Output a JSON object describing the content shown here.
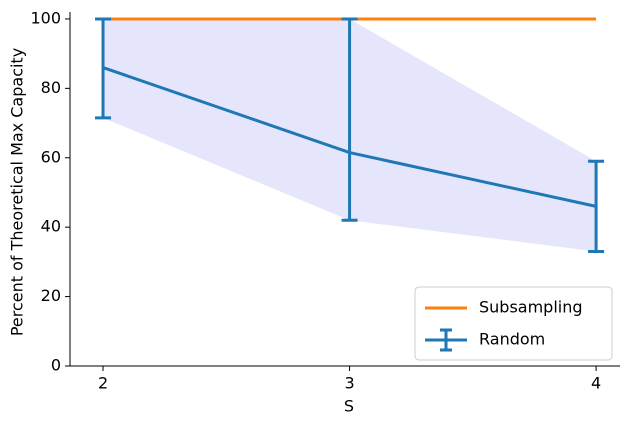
{
  "chart_data": {
    "type": "line",
    "x_label": "S",
    "y_label": "Percent of Theoretical Max Capacity",
    "x": [
      2,
      3,
      4
    ],
    "series": [
      {
        "name": "Subsampling",
        "color": "#ff7f0e",
        "values": [
          100,
          100,
          100
        ]
      },
      {
        "name": "Random",
        "color": "#1f77b4",
        "values": [
          86,
          61.5,
          46
        ],
        "error_low": [
          71.5,
          42,
          33
        ],
        "error_high": [
          100,
          100,
          59
        ],
        "band_color": "#e0e0fa"
      }
    ],
    "xlim": [
      1.866,
      4.097
    ],
    "xticks": [
      2,
      3,
      4
    ],
    "ylim": [
      0,
      102
    ],
    "yticks": [
      0,
      20,
      40,
      60,
      80,
      100
    ],
    "legend": "lower right"
  }
}
